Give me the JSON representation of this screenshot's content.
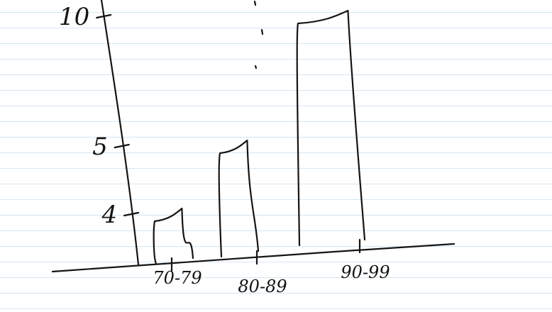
{
  "chart_data": {
    "type": "bar",
    "categories": [
      "70-79",
      "80-89",
      "90-99"
    ],
    "values": [
      4,
      5,
      10
    ],
    "ytick_labels": [
      "4",
      "5",
      "10"
    ],
    "yticks": [
      4,
      5,
      10
    ],
    "title": "",
    "xlabel": "",
    "ylabel": "",
    "grid": false,
    "style": "handwritten sketch on ruled notebook paper"
  },
  "colors": {
    "ink": "#141414",
    "ruled_lines": "#d7e6f2",
    "paper": "#ffffff"
  }
}
